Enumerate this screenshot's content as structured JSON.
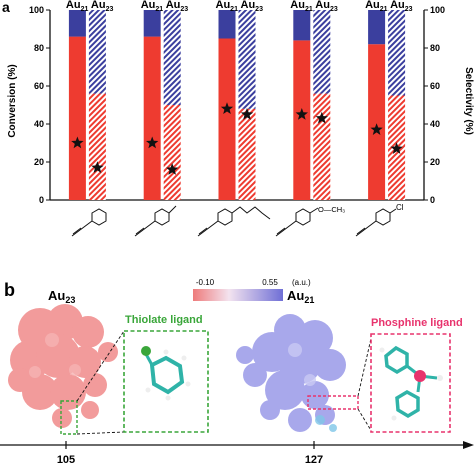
{
  "panel_a": {
    "panel_label": "a",
    "chart_data": {
      "type": "bar",
      "title": "",
      "ylabel": "Conversion (%)",
      "ylabel_right": "Selectivity (%)",
      "ylim": [
        0,
        100
      ],
      "yticks": [
        0,
        20,
        40,
        60,
        80,
        100
      ],
      "yticks_right": [
        0,
        20,
        40,
        60,
        80,
        100
      ],
      "grid": false,
      "categories": [
        "ethynylbenzene",
        "4-ethynyltoluene",
        "4-pentylphenylacetylene",
        "4-ethynylanisole",
        "4-chlorophenylacetylene"
      ],
      "catalysts": [
        "Au21",
        "Au23"
      ],
      "series": [
        {
          "name": "Au21",
          "style": "solid",
          "values": [
            86,
            86,
            85,
            84,
            82
          ],
          "selectivity_total": 100
        },
        {
          "name": "Au23",
          "style": "hatched",
          "values": [
            56,
            50,
            48,
            56,
            55
          ],
          "selectivity_total": 100
        }
      ],
      "stars_conversion": [
        [
          30,
          17
        ],
        [
          30,
          16
        ],
        [
          48,
          45
        ],
        [
          45,
          43
        ],
        [
          37,
          27
        ]
      ],
      "colors": {
        "conversion": "#ee3b30",
        "selectivity": "#3b3f9e",
        "hatch_bg": "#ffffff"
      }
    },
    "header_labels": [
      {
        "au21": "Au",
        "au21_sub": "21",
        "au23": "Au",
        "au23_sub": "23"
      },
      {
        "au21": "Au",
        "au21_sub": "21",
        "au23": "Au",
        "au23_sub": "23"
      },
      {
        "au21": "Au",
        "au21_sub": "21",
        "au23": "Au",
        "au23_sub": "23"
      },
      {
        "au21": "Au",
        "au21_sub": "21",
        "au23": "Au",
        "au23_sub": "23"
      },
      {
        "au21": "Au",
        "au21_sub": "21",
        "au23": "Au",
        "au23_sub": "23"
      }
    ],
    "substituent_labels": [
      "",
      "",
      "",
      "O—CH₃",
      "Cl"
    ]
  },
  "panel_b": {
    "panel_label": "b",
    "left_cluster": "Au",
    "left_cluster_sub": "23",
    "right_cluster": "Au",
    "right_cluster_sub": "21",
    "colorbar": {
      "min": "-0.10",
      "max": "0.55",
      "unit": "(a.u.)"
    },
    "thiolate_label": "Thiolate ligand",
    "phosphine_label": "Phosphine ligand",
    "axis_ticks": [
      "105",
      "127"
    ],
    "colors": {
      "thiolate": "#3aa63a",
      "phosphine": "#e8336d",
      "au23_surface": "#f08a8a",
      "au21_surface": "#9a9ae8"
    }
  }
}
